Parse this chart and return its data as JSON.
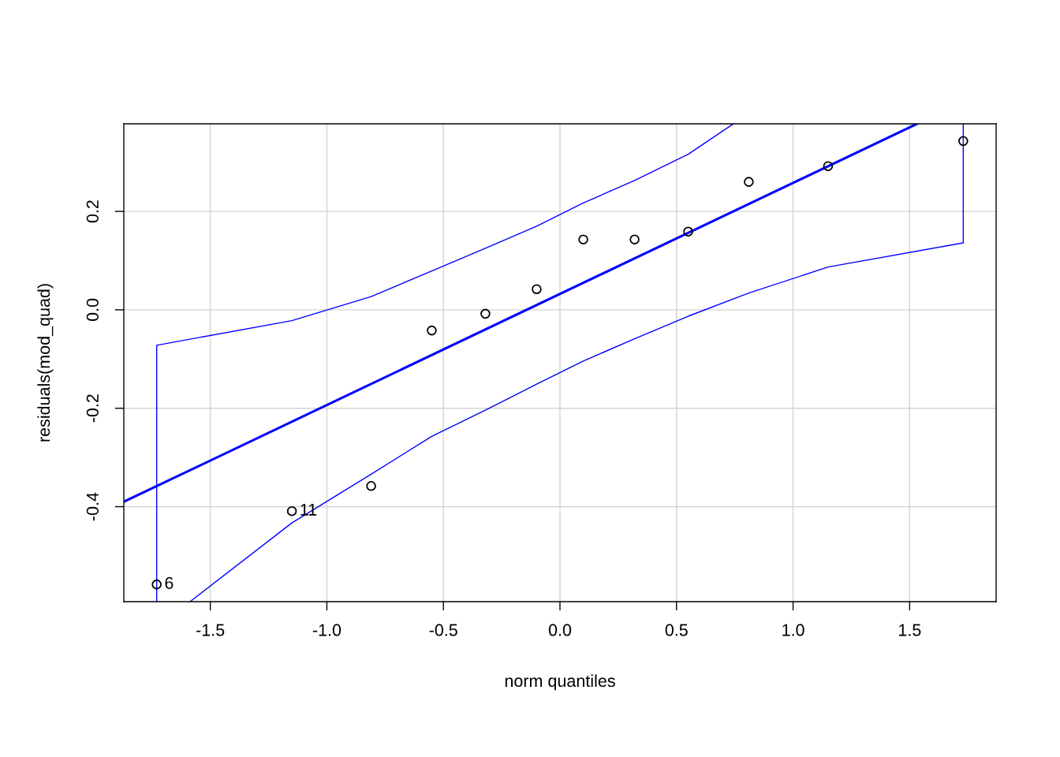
{
  "chart_data": {
    "type": "scatter",
    "xlabel": "norm quantiles",
    "ylabel": "residuals(mod_quad)",
    "xlim": [
      -1.871,
      1.871
    ],
    "ylim": [
      -0.593,
      0.378
    ],
    "xticks": [
      {
        "value": -1.5,
        "label": "-1.5"
      },
      {
        "value": -1.0,
        "label": "-1.0"
      },
      {
        "value": -0.5,
        "label": "-0.5"
      },
      {
        "value": 0.0,
        "label": "0.0"
      },
      {
        "value": 0.5,
        "label": "0.5"
      },
      {
        "value": 1.0,
        "label": "1.0"
      },
      {
        "value": 1.5,
        "label": "1.5"
      }
    ],
    "yticks": [
      {
        "value": -0.4,
        "label": "-0.4"
      },
      {
        "value": -0.2,
        "label": "-0.2"
      },
      {
        "value": 0.0,
        "label": "0.0"
      },
      {
        "value": 0.2,
        "label": "0.2"
      }
    ],
    "grid": true,
    "series": [
      {
        "marker": "circle",
        "color": "#000000",
        "x": [
          -1.73,
          -1.15,
          -0.81,
          -0.55,
          -0.32,
          -0.1,
          0.1,
          0.32,
          0.55,
          0.81,
          1.15,
          1.73
        ],
        "values": [
          -0.558,
          -0.409,
          -0.358,
          -0.042,
          -0.008,
          0.042,
          0.143,
          0.143,
          0.159,
          0.26,
          0.292,
          0.343
        ]
      },
      {
        "type": "line",
        "marker": "none",
        "color": "#0000ff",
        "x": [
          -1.871,
          1.532
        ],
        "values": [
          -0.39,
          0.378
        ]
      },
      {
        "type": "line",
        "marker": "none",
        "color": "#0000ff",
        "x": [
          -1.73,
          -1.73,
          -1.15,
          -0.81,
          -0.55,
          -0.32,
          -0.1,
          0.1,
          0.32,
          0.55,
          0.744
        ],
        "values": [
          -0.593,
          -0.072,
          -0.022,
          0.027,
          0.079,
          0.125,
          0.17,
          0.217,
          0.263,
          0.316,
          0.378
        ]
      },
      {
        "type": "line",
        "marker": "none",
        "color": "#0000ff",
        "x": [
          -1.587,
          -1.15,
          -0.81,
          -0.55,
          -0.32,
          -0.1,
          0.1,
          0.32,
          0.55,
          0.81,
          1.15,
          1.73,
          1.73
        ],
        "values": [
          -0.593,
          -0.433,
          -0.334,
          -0.257,
          -0.204,
          -0.151,
          -0.104,
          -0.059,
          -0.013,
          0.034,
          0.087,
          0.136,
          0.378
        ]
      }
    ],
    "annotations": [
      {
        "text": "6",
        "x": -1.73,
        "y": -0.558
      },
      {
        "text": "11",
        "x": -1.15,
        "y": -0.409
      }
    ]
  }
}
